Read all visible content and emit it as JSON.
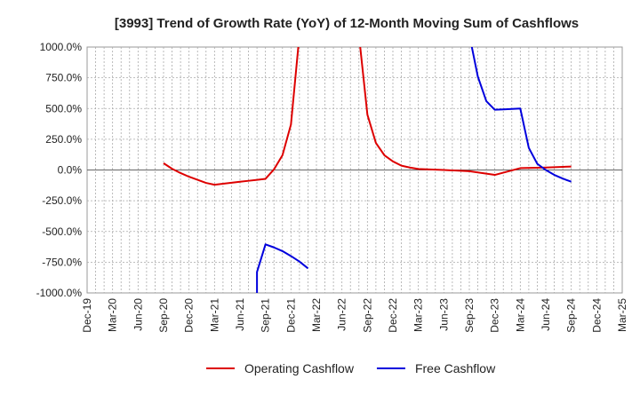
{
  "chart_data": {
    "type": "line",
    "title": "[3993]  Trend of Growth Rate (YoY) of 12-Month Moving Sum of Cashflows",
    "xlabel": "",
    "ylabel": "",
    "ylim": [
      -1000,
      1000
    ],
    "y_unit": "%",
    "y_ticks": [
      1000,
      750,
      500,
      250,
      0,
      -250,
      -500,
      -750,
      -1000
    ],
    "y_tick_labels": [
      "1000.0%",
      "750.0%",
      "500.0%",
      "250.0%",
      "0.0%",
      "-250.0%",
      "-500.0%",
      "-750.0%",
      "-1000.0%"
    ],
    "x_tick_labels": [
      "Dec-19",
      "Mar-20",
      "Jun-20",
      "Sep-20",
      "Dec-20",
      "Mar-21",
      "Jun-21",
      "Sep-21",
      "Dec-21",
      "Mar-22",
      "Jun-22",
      "Sep-22",
      "Dec-22",
      "Mar-23",
      "Jun-23",
      "Sep-23",
      "Dec-23",
      "Mar-24",
      "Jun-24",
      "Sep-24",
      "Dec-24",
      "Mar-25"
    ],
    "grid": true,
    "legend_position": "bottom-center",
    "series": [
      {
        "name": "Operating Cashflow",
        "color": "#dd0000",
        "points": [
          [
            "Sep-20",
            55
          ],
          [
            "Oct-20",
            10
          ],
          [
            "Nov-20",
            -25
          ],
          [
            "Dec-20",
            -55
          ],
          [
            "Jan-21",
            -80
          ],
          [
            "Feb-21",
            -105
          ],
          [
            "Mar-21",
            -120
          ],
          [
            "Apr-21",
            -112
          ],
          [
            "May-21",
            -104
          ],
          [
            "Jun-21",
            -96
          ],
          [
            "Jul-21",
            -88
          ],
          [
            "Aug-21",
            -80
          ],
          [
            "Sep-21",
            -72
          ],
          [
            "Oct-21",
            5
          ],
          [
            "Nov-21",
            120
          ],
          [
            "Dec-21",
            370
          ],
          [
            "Jan-22",
            1100
          ],
          null,
          [
            "Aug-22",
            1100
          ],
          [
            "Sep-22",
            450
          ],
          [
            "Oct-22",
            220
          ],
          [
            "Nov-22",
            120
          ],
          [
            "Dec-22",
            70
          ],
          [
            "Jan-23",
            35
          ],
          [
            "Feb-23",
            20
          ],
          [
            "Mar-23",
            8
          ],
          [
            "Jun-23",
            0
          ],
          [
            "Sep-23",
            -10
          ],
          [
            "Dec-23",
            -40
          ],
          [
            "Mar-24",
            15
          ],
          [
            "Jun-24",
            20
          ],
          [
            "Sep-24",
            28
          ]
        ]
      },
      {
        "name": "Free Cashflow",
        "color": "#0000dd",
        "points": [
          [
            "Aug-21",
            -1100
          ],
          [
            "Aug-21",
            -830
          ],
          [
            "Sep-21",
            -605
          ],
          [
            "Oct-21",
            -630
          ],
          [
            "Nov-21",
            -660
          ],
          [
            "Dec-21",
            -700
          ],
          [
            "Jan-22",
            -745
          ],
          [
            "Feb-22",
            -800
          ],
          null,
          [
            "Sep-23",
            1100
          ],
          [
            "Oct-23",
            760
          ],
          [
            "Nov-23",
            560
          ],
          [
            "Dec-23",
            490
          ],
          [
            "Jan-24",
            493
          ],
          [
            "Feb-24",
            496
          ],
          [
            "Mar-24",
            500
          ],
          [
            "Apr-24",
            180
          ],
          [
            "May-24",
            50
          ],
          [
            "Jun-24",
            0
          ],
          [
            "Jul-24",
            -40
          ],
          [
            "Aug-24",
            -70
          ],
          [
            "Sep-24",
            -95
          ]
        ]
      }
    ]
  }
}
